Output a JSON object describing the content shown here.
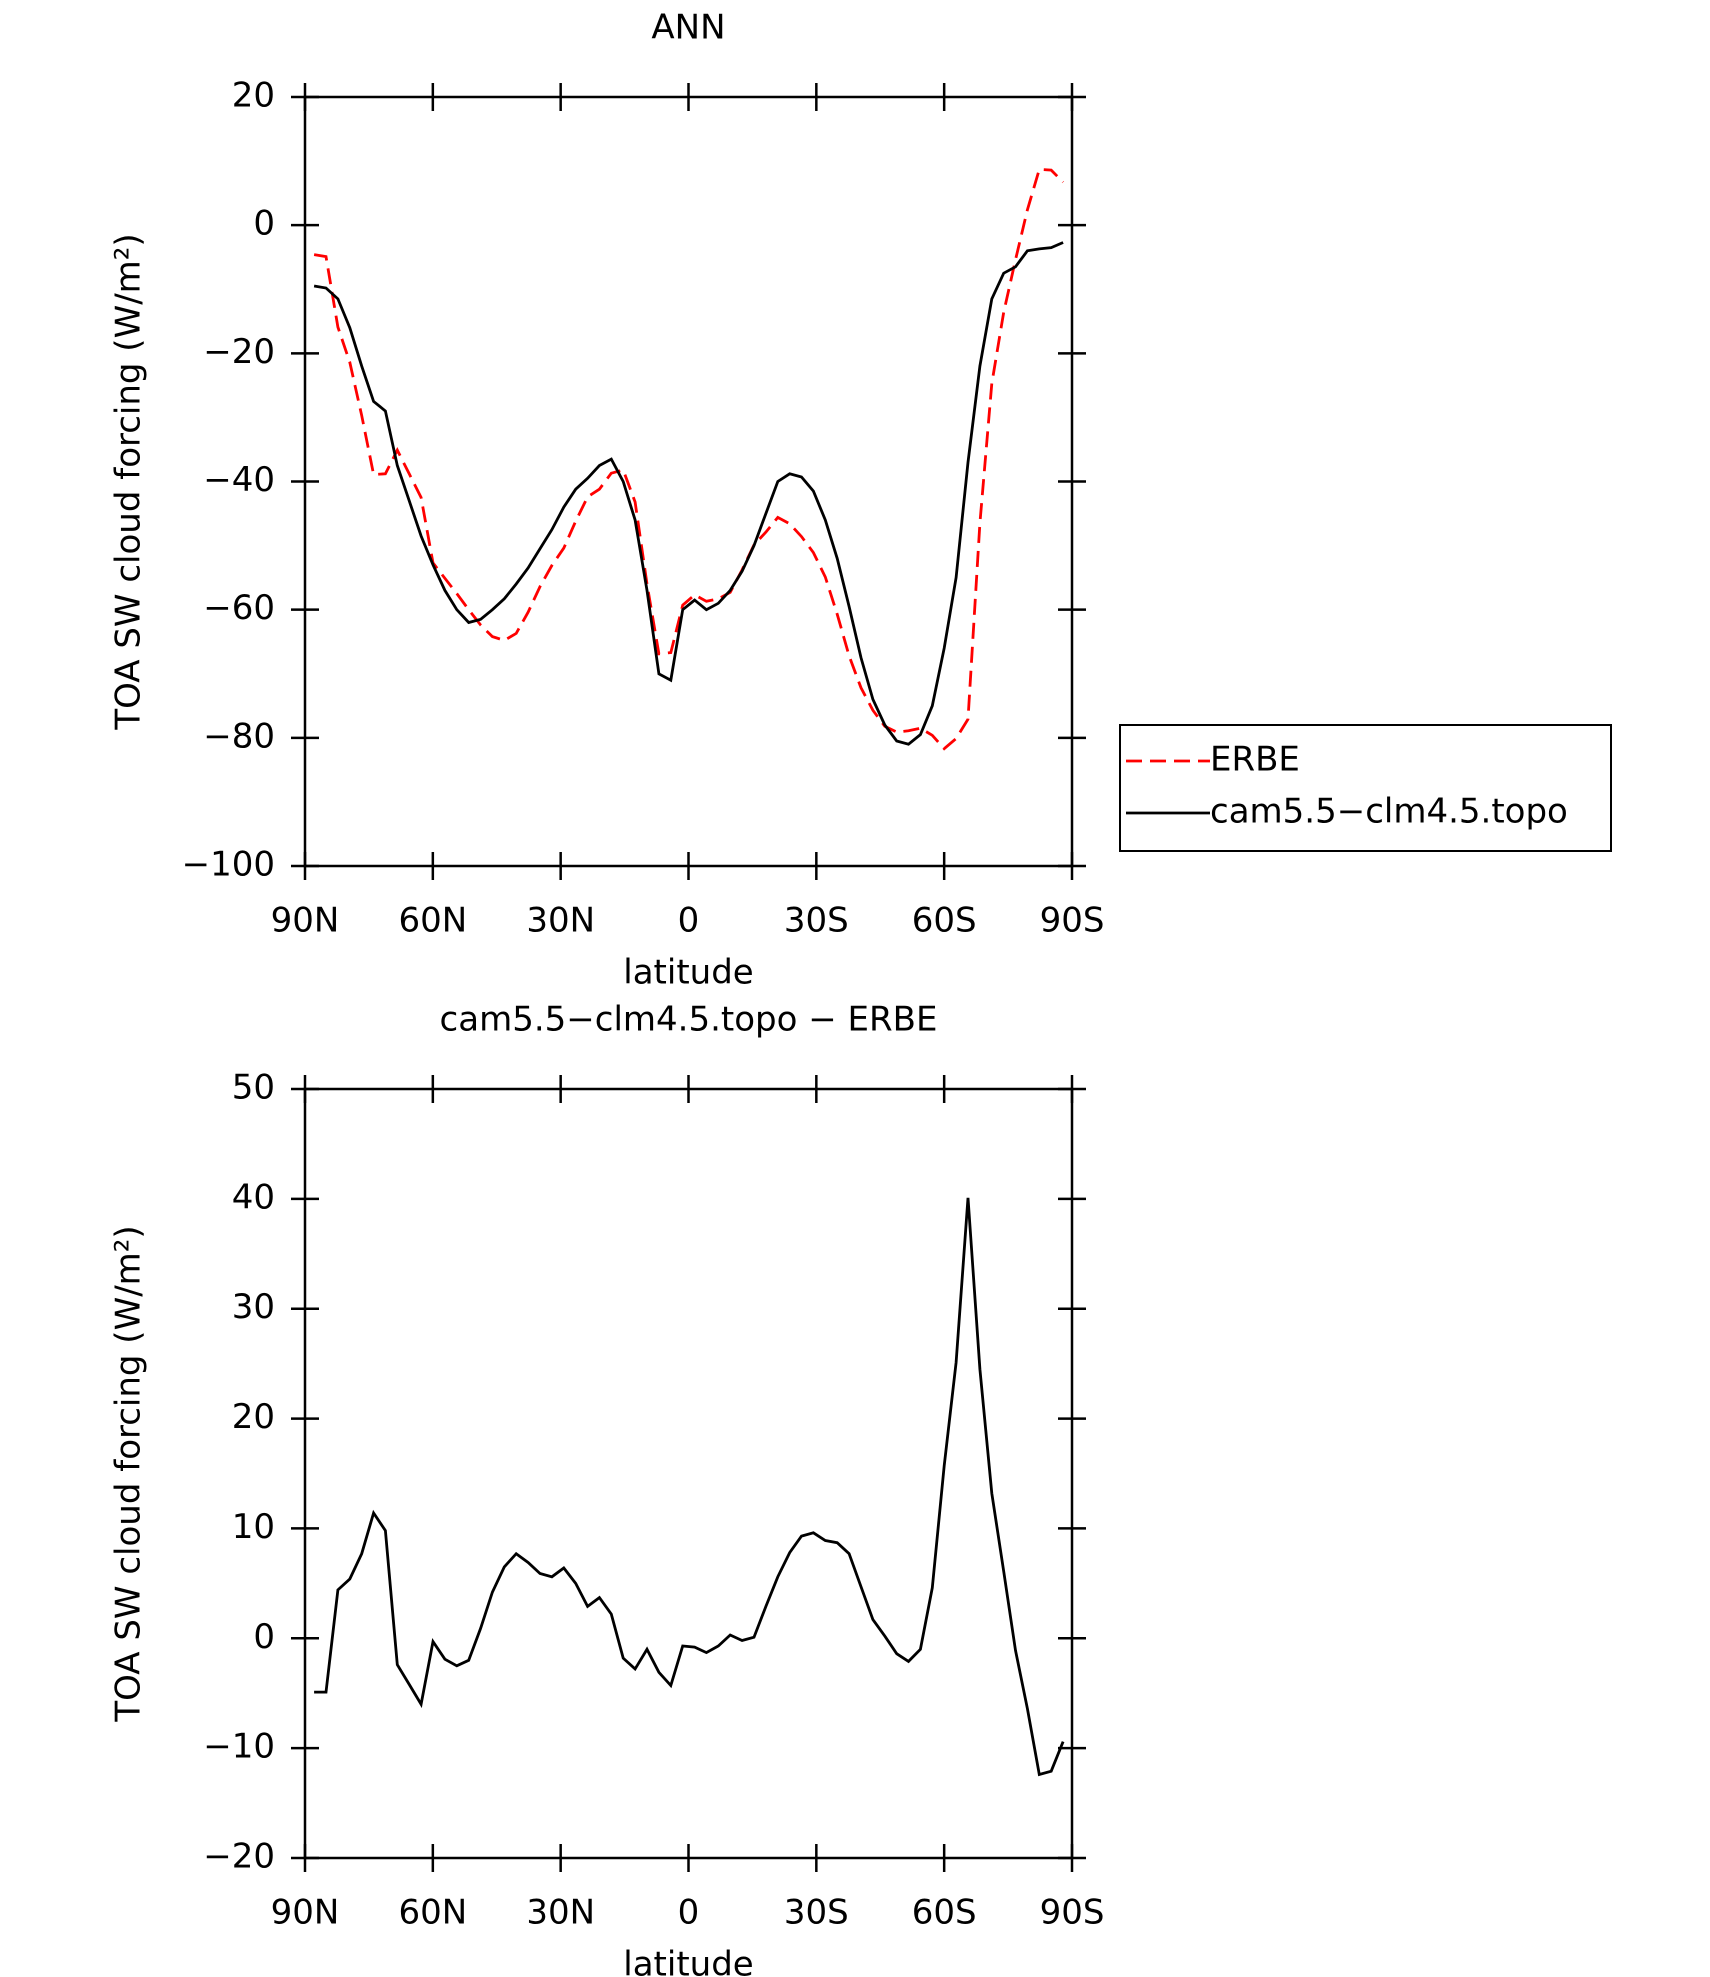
{
  "chart_data": [
    {
      "type": "line",
      "title": "ANN",
      "xlabel": "latitude",
      "ylabel": "TOA SW cloud forcing (W/m²)",
      "x": [
        87.86,
        85.07,
        82.28,
        79.49,
        76.7,
        73.91,
        71.12,
        68.33,
        65.54,
        62.75,
        59.96,
        57.17,
        54.38,
        51.59,
        48.8,
        46.01,
        43.22,
        40.43,
        37.64,
        34.85,
        32.06,
        29.27,
        26.48,
        23.69,
        20.9,
        18.11,
        15.32,
        12.53,
        9.74,
        6.95,
        4.16,
        1.37,
        -1.42,
        -4.21,
        -7.0,
        -9.79,
        -12.58,
        -15.37,
        -18.16,
        -20.95,
        -23.74,
        -26.53,
        -29.32,
        -32.11,
        -34.9,
        -37.69,
        -40.48,
        -43.27,
        -46.06,
        -48.85,
        -51.64,
        -54.43,
        -57.22,
        -60.01,
        -62.8,
        -65.59,
        -68.38,
        -71.17,
        -73.96,
        -76.75,
        -79.54,
        -82.33,
        -85.12,
        -87.91
      ],
      "series": [
        {
          "name": "ERBE",
          "color": "#ff0000",
          "linestyle": "dashed",
          "values": [
            -4.6,
            -4.9,
            -15.9,
            -21.4,
            -29.7,
            -38.9,
            -38.8,
            -35.1,
            -38.8,
            -42.5,
            -52.7,
            -55.1,
            -57.5,
            -60,
            -62.4,
            -64.2,
            -64.8,
            -63.7,
            -60.4,
            -56.4,
            -53.1,
            -50.4,
            -46.2,
            -42.4,
            -41.2,
            -38.7,
            -38.2,
            -43.2,
            -56,
            -66.9,
            -66.7,
            -59.3,
            -57.7,
            -58.7,
            -58.3,
            -57.3,
            -53.8,
            -49.9,
            -47.9,
            -45.6,
            -46.6,
            -48.6,
            -51.1,
            -54.9,
            -60.7,
            -67.2,
            -72.2,
            -75.7,
            -78.2,
            -79.1,
            -78.9,
            -78.5,
            -79.6,
            -81.7,
            -80.1,
            -77.1,
            -46.5,
            -24.7,
            -13.6,
            -5.4,
            2.4,
            8.7,
            8.6,
            6.7
          ]
        },
        {
          "name": "cam5.5−clm4.5.topo",
          "color": "#000000",
          "linestyle": "solid",
          "values": [
            -9.5,
            -9.8,
            -11.5,
            -16,
            -22,
            -27.5,
            -29,
            -37.5,
            -43,
            -48.5,
            -53,
            -57,
            -60,
            -62,
            -61.5,
            -60,
            -58.3,
            -56,
            -53.5,
            -50.5,
            -47.5,
            -44,
            -41.2,
            -39.5,
            -37.5,
            -36.5,
            -40,
            -46,
            -57,
            -70,
            -71,
            -60,
            -58.5,
            -60,
            -59,
            -57,
            -54,
            -50,
            -45,
            -40,
            -38.8,
            -39.3,
            -41.5,
            -46,
            -52,
            -59.5,
            -67.5,
            -74,
            -78,
            -80.5,
            -81,
            -79.5,
            -75,
            -66,
            -55,
            -37,
            -22,
            -11.5,
            -7.5,
            -6.5,
            -4,
            -3.7,
            -3.5,
            -2.7
          ]
        }
      ],
      "xlim": [
        90,
        -90
      ],
      "xticks": [
        {
          "value": 90,
          "label": "90N"
        },
        {
          "value": 60,
          "label": "60N"
        },
        {
          "value": 30,
          "label": "30N"
        },
        0,
        {
          "value": -30,
          "label": "30S"
        },
        {
          "value": -60,
          "label": "60S"
        },
        {
          "value": -90,
          "label": "90S"
        }
      ],
      "ylim": [
        -100,
        20
      ],
      "yticks": [
        {
          "value": -100,
          "label": "−100"
        },
        {
          "value": -80,
          "label": "−80"
        },
        {
          "value": -60,
          "label": "−60"
        },
        {
          "value": -40,
          "label": "−40"
        },
        {
          "value": -20,
          "label": "−20"
        },
        0,
        20
      ],
      "legend": "outside-right"
    },
    {
      "type": "line",
      "title": "cam5.5−clm4.5.topo − ERBE",
      "xlabel": "latitude",
      "ylabel": "TOA SW cloud forcing (W/m²)",
      "x": [
        87.86,
        85.07,
        82.28,
        79.49,
        76.7,
        73.91,
        71.12,
        68.33,
        65.54,
        62.75,
        59.96,
        57.17,
        54.38,
        51.59,
        48.8,
        46.01,
        43.22,
        40.43,
        37.64,
        34.85,
        32.06,
        29.27,
        26.48,
        23.69,
        20.9,
        18.11,
        15.32,
        12.53,
        9.74,
        6.95,
        4.16,
        1.37,
        -1.42,
        -4.21,
        -7.0,
        -9.79,
        -12.58,
        -15.37,
        -18.16,
        -20.95,
        -23.74,
        -26.53,
        -29.32,
        -32.11,
        -34.9,
        -37.69,
        -40.48,
        -43.27,
        -46.06,
        -48.85,
        -51.64,
        -54.43,
        -57.22,
        -60.01,
        -62.8,
        -65.59,
        -68.38,
        -71.17,
        -73.96,
        -76.75,
        -79.54,
        -82.33,
        -85.12,
        -87.91
      ],
      "series": [
        {
          "name": null,
          "color": "#000000",
          "linestyle": "solid",
          "values": [
            -4.9,
            -4.9,
            4.4,
            5.4,
            7.7,
            11.4,
            9.8,
            -2.4,
            -4.2,
            -6,
            -0.3,
            -1.9,
            -2.5,
            -2,
            0.9,
            4.2,
            6.5,
            7.7,
            6.9,
            5.9,
            5.6,
            6.4,
            5,
            2.9,
            3.7,
            2.2,
            -1.8,
            -2.8,
            -1,
            -3.1,
            -4.3,
            -0.7,
            -0.8,
            -1.3,
            -0.7,
            0.3,
            -0.2,
            0.1,
            2.9,
            5.6,
            7.8,
            9.3,
            9.6,
            8.9,
            8.7,
            7.7,
            4.7,
            1.7,
            0.2,
            -1.4,
            -2.1,
            -1,
            4.6,
            15.7,
            25.1,
            40.1,
            24.5,
            13.2,
            6.1,
            -1.1,
            -6.4,
            -12.4,
            -12.1,
            -9.4
          ]
        }
      ],
      "xlim": [
        90,
        -90
      ],
      "xticks": [
        {
          "value": 90,
          "label": "90N"
        },
        {
          "value": 60,
          "label": "60N"
        },
        {
          "value": 30,
          "label": "30N"
        },
        0,
        {
          "value": -30,
          "label": "30S"
        },
        {
          "value": -60,
          "label": "60S"
        },
        {
          "value": -90,
          "label": "90S"
        }
      ],
      "ylim": [
        -20,
        50
      ],
      "yticks": [
        {
          "value": -20,
          "label": "−20"
        },
        {
          "value": -10,
          "label": "−10"
        },
        0,
        10,
        20,
        30,
        40,
        50
      ]
    }
  ]
}
